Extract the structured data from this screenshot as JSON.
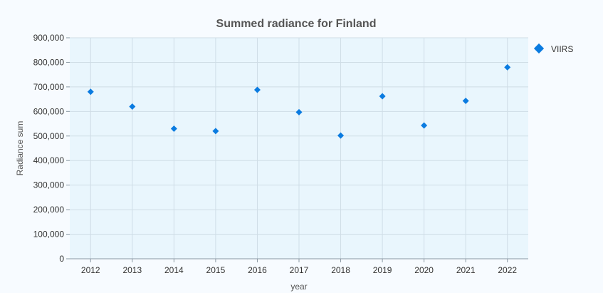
{
  "chart_data": {
    "type": "scatter",
    "title": "Summed radiance for Finland",
    "xlabel": "year",
    "ylabel": "Radiance sum",
    "x": [
      2012,
      2013,
      2014,
      2015,
      2016,
      2017,
      2018,
      2019,
      2020,
      2021,
      2022
    ],
    "y_ticks": [
      "0",
      "100,000",
      "200,000",
      "300,000",
      "400,000",
      "500,000",
      "600,000",
      "700,000",
      "800,000",
      "900,000"
    ],
    "ylim": [
      0,
      900000
    ],
    "series": [
      {
        "name": "VIIRS",
        "marker": "diamond",
        "values": [
          680000,
          620000,
          530000,
          520000,
          688000,
          597000,
          502000,
          662000,
          543000,
          643000,
          780000
        ]
      }
    ],
    "grid": true,
    "legend": "right"
  },
  "colors": {
    "marker": "#0a7be0",
    "plot_bg": "#e9f6fd",
    "grid": "#cfdde6",
    "page_bg": "#f7fbff"
  }
}
